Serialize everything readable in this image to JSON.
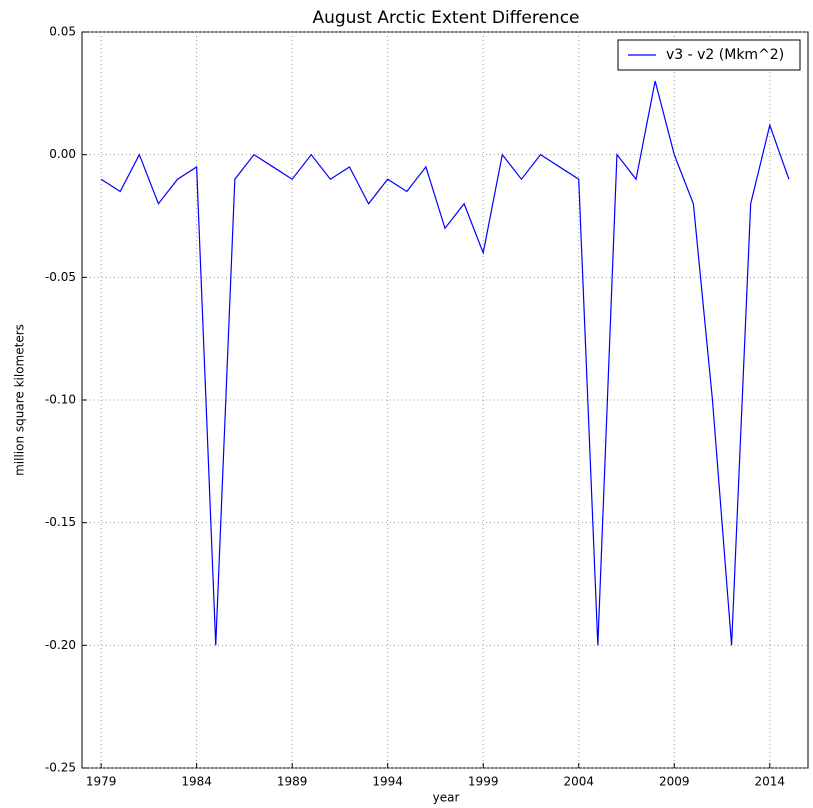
{
  "chart_data": {
    "type": "line",
    "title": "August Arctic Extent Difference",
    "xlabel": "year",
    "ylabel": "million square kilometers",
    "x": [
      1979,
      1980,
      1981,
      1982,
      1983,
      1984,
      1985,
      1986,
      1987,
      1988,
      1989,
      1990,
      1991,
      1992,
      1993,
      1994,
      1995,
      1996,
      1997,
      1998,
      1999,
      2000,
      2001,
      2002,
      2003,
      2004,
      2005,
      2006,
      2007,
      2008,
      2009,
      2010,
      2011,
      2012,
      2013,
      2014,
      2015
    ],
    "series": [
      {
        "name": "v3 - v2 (Mkm^2)",
        "color": "#0000ff",
        "values": [
          -0.01,
          -0.015,
          0.0,
          -0.02,
          -0.01,
          -0.005,
          -0.2,
          -0.01,
          0.0,
          -0.005,
          -0.01,
          0.0,
          -0.01,
          -0.005,
          -0.02,
          -0.01,
          -0.015,
          -0.005,
          -0.03,
          -0.02,
          -0.04,
          0.0,
          -0.01,
          0.0,
          -0.005,
          -0.01,
          -0.2,
          0.0,
          -0.01,
          0.03,
          0.0,
          -0.02,
          -0.1,
          -0.2,
          -0.02,
          0.012,
          -0.01
        ]
      }
    ],
    "xlim": [
      1978,
      2016
    ],
    "xticks": [
      1979,
      1984,
      1989,
      1994,
      1999,
      2004,
      2009,
      2014
    ],
    "ylim": [
      -0.25,
      0.05
    ],
    "yticks": [
      {
        "value": -0.25,
        "label": "-0.25"
      },
      {
        "value": -0.2,
        "label": "-0.20"
      },
      {
        "value": -0.15,
        "label": "-0.15"
      },
      {
        "value": -0.1,
        "label": "-0.10"
      },
      {
        "value": -0.05,
        "label": "-0.05"
      },
      {
        "value": 0,
        "label": "0.00"
      },
      0.05
    ],
    "grid": true,
    "legend": "upper right"
  }
}
